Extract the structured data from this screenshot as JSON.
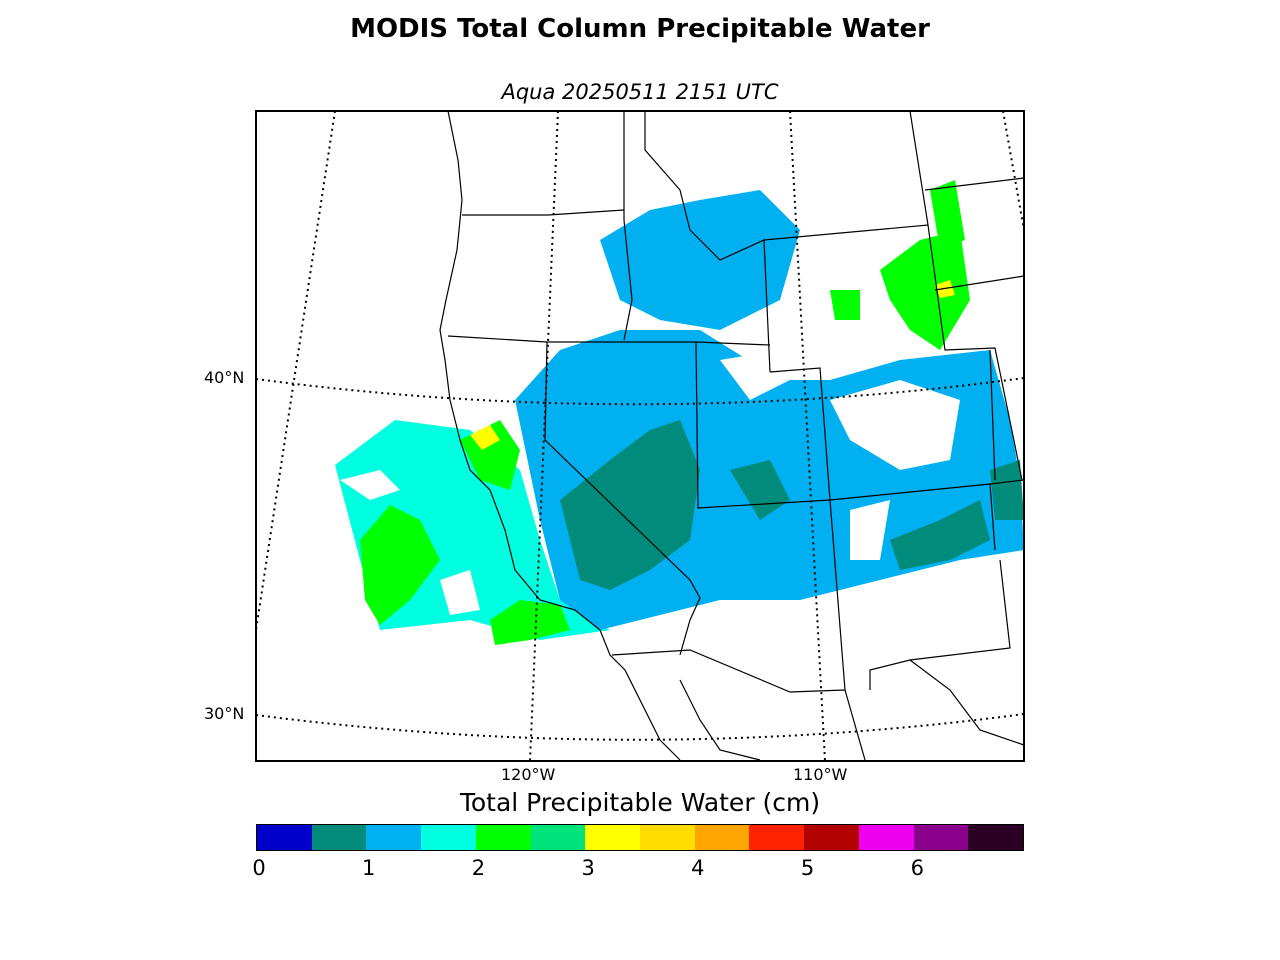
{
  "title": "MODIS Total Column Precipitable Water",
  "subtitle": "Aqua 20250511 2151 UTC",
  "map": {
    "lat_labels": [
      "40°N",
      "30°N"
    ],
    "lon_labels": [
      "120°W",
      "110°W"
    ]
  },
  "colorbar": {
    "label": "Total Precipitable Water (cm)",
    "ticks": [
      "0",
      "1",
      "2",
      "3",
      "4",
      "5",
      "6"
    ],
    "range": [
      0,
      7
    ],
    "step": 0.5,
    "colors": [
      "#0000cd",
      "#008b7b",
      "#00b0f0",
      "#00ffe0",
      "#00ff00",
      "#00e27a",
      "#ffff00",
      "#ffdd00",
      "#ffa500",
      "#ff2200",
      "#b30000",
      "#ee00ee",
      "#8b008b",
      "#2a0025"
    ]
  },
  "colors": {
    "low": "#008b7b",
    "mid": "#00b0f0",
    "cyan": "#00ffe0",
    "green": "#00ff00",
    "yellow": "#ffff00",
    "red": "#ff2200"
  }
}
